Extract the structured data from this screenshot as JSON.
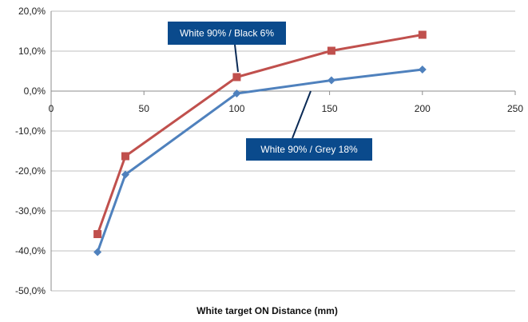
{
  "chart_data": {
    "type": "line",
    "title": "",
    "xlabel": "White target ON Distance  (mm)",
    "ylabel": "",
    "xlim": [
      0,
      250
    ],
    "ylim": [
      -50,
      20
    ],
    "x_ticks": [
      0,
      50,
      100,
      150,
      200,
      250
    ],
    "y_ticks": [
      20,
      10,
      0,
      -10,
      -20,
      -30,
      -40,
      -50
    ],
    "y_tick_labels": [
      "20,0%",
      "10,0%",
      "0,0%",
      "-10,0%",
      "-20,0%",
      "-30,0%",
      "-40,0%",
      "-50,0%"
    ],
    "grid": "horizontal",
    "legend": "none",
    "series": [
      {
        "name": "White 90% / Black 6%",
        "color": "#c0504d",
        "marker": "square",
        "x": [
          25,
          40,
          100,
          151,
          200
        ],
        "y": [
          -35.8,
          -16.3,
          3.5,
          10.1,
          14.1
        ]
      },
      {
        "name": "White 90% / Grey 18%",
        "color": "#4f81bd",
        "marker": "diamond",
        "x": [
          25,
          40,
          100,
          151,
          200
        ],
        "y": [
          -40.3,
          -20.9,
          -0.6,
          2.7,
          5.4
        ]
      }
    ],
    "annotations": [
      {
        "text": "White 90% / Black 6%",
        "fill": "#0a4a8c"
      },
      {
        "text": "White 90% / Grey 18%",
        "fill": "#0a4a8c"
      }
    ]
  }
}
